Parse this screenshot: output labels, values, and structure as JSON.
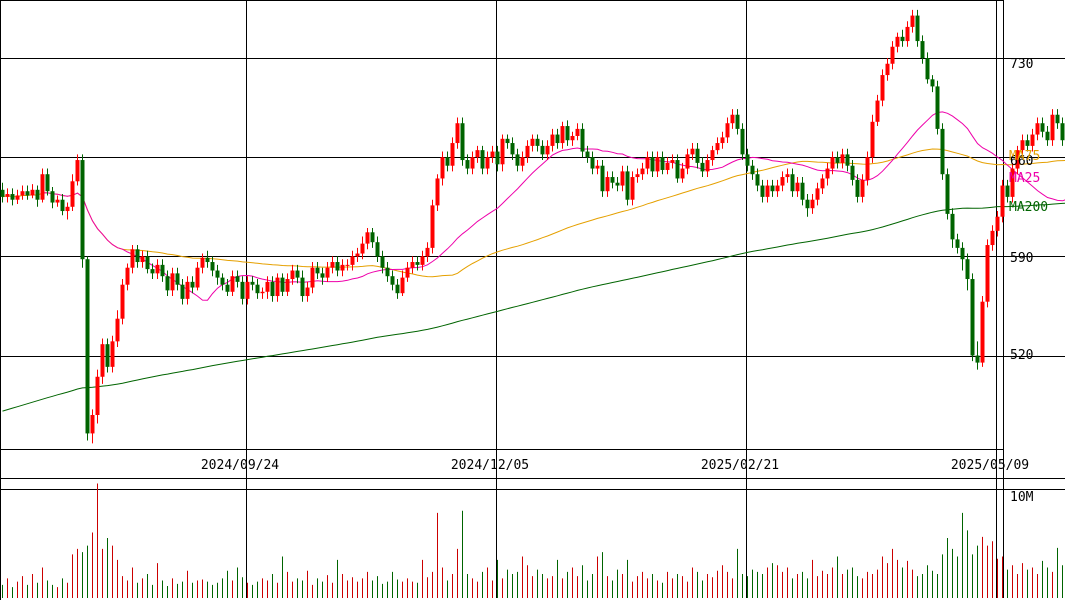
{
  "chart_data": {
    "type": "candlestick",
    "colors": {
      "up": "#ff0000",
      "down": "#006400",
      "ma25": "#ee00aa",
      "ma75": "#e5a000",
      "ma200": "#006400",
      "grid": "#000000",
      "volume_up": "#cc0000",
      "volume_down": "#006400"
    },
    "y_ticks": [
      "730",
      "660",
      "590",
      "520"
    ],
    "y_tick_values": [
      730,
      660,
      590,
      520
    ],
    "ylim": [
      454,
      771
    ],
    "date_labels": [
      "2024/09/24",
      "2024/12/05",
      "2025/02/21",
      "2025/05/09"
    ],
    "date_label_indices": [
      50,
      100,
      150,
      200
    ],
    "volume_tick": "10M",
    "volume_ylim": [
      0,
      11
    ],
    "legend": {
      "ma75": "MA75",
      "ma25": "MA25",
      "ma200": "MA200"
    },
    "candles": [
      [
        637,
        632,
        642,
        628
      ],
      [
        632,
        634,
        638,
        628
      ],
      [
        634,
        630,
        638,
        626
      ],
      [
        630,
        633,
        637,
        627
      ],
      [
        633,
        636,
        640,
        630
      ],
      [
        636,
        633,
        640,
        630
      ],
      [
        633,
        637,
        641,
        631
      ],
      [
        637,
        630,
        640,
        625
      ],
      [
        630,
        648,
        652,
        628
      ],
      [
        648,
        636,
        652,
        633
      ],
      [
        636,
        628,
        639,
        624
      ],
      [
        628,
        630,
        633,
        625
      ],
      [
        630,
        622,
        634,
        619
      ],
      [
        622,
        625,
        628,
        616
      ],
      [
        625,
        643,
        648,
        622
      ],
      [
        643,
        658,
        662,
        640
      ],
      [
        658,
        588,
        662,
        582
      ],
      [
        588,
        465,
        590,
        460
      ],
      [
        465,
        478,
        482,
        458
      ],
      [
        478,
        505,
        510,
        472
      ],
      [
        505,
        528,
        532,
        500
      ],
      [
        528,
        512,
        532,
        508
      ],
      [
        512,
        530,
        534,
        508
      ],
      [
        530,
        546,
        552,
        526
      ],
      [
        546,
        570,
        574,
        542
      ],
      [
        570,
        582,
        585,
        566
      ],
      [
        582,
        595,
        598,
        578
      ],
      [
        595,
        586,
        598,
        582
      ],
      [
        586,
        590,
        594,
        582
      ],
      [
        590,
        581,
        594,
        578
      ],
      [
        581,
        578,
        585,
        574
      ],
      [
        578,
        584,
        588,
        574
      ],
      [
        584,
        576,
        588,
        572
      ],
      [
        576,
        566,
        580,
        562
      ],
      [
        566,
        578,
        582,
        562
      ],
      [
        578,
        570,
        582,
        566
      ],
      [
        570,
        560,
        574,
        556
      ],
      [
        560,
        572,
        576,
        556
      ],
      [
        572,
        568,
        576,
        564
      ],
      [
        568,
        582,
        586,
        566
      ],
      [
        582,
        589,
        592,
        578
      ],
      [
        589,
        586,
        594,
        582
      ],
      [
        586,
        580,
        590,
        576
      ],
      [
        580,
        575,
        584,
        570
      ],
      [
        575,
        570,
        578,
        566
      ],
      [
        570,
        565,
        574,
        562
      ],
      [
        565,
        576,
        580,
        562
      ],
      [
        576,
        572,
        580,
        568
      ],
      [
        572,
        560,
        576,
        556
      ],
      [
        560,
        572,
        576,
        556
      ],
      [
        572,
        570,
        576,
        566
      ],
      [
        570,
        564,
        574,
        560
      ],
      [
        564,
        565,
        568,
        560
      ],
      [
        565,
        572,
        576,
        560
      ],
      [
        572,
        562,
        576,
        558
      ],
      [
        562,
        575,
        578,
        558
      ],
      [
        575,
        565,
        578,
        562
      ],
      [
        565,
        574,
        578,
        562
      ],
      [
        574,
        580,
        584,
        570
      ],
      [
        580,
        575,
        584,
        571
      ],
      [
        575,
        562,
        580,
        558
      ],
      [
        562,
        568,
        572,
        558
      ],
      [
        568,
        582,
        586,
        564
      ],
      [
        582,
        578,
        586,
        574
      ],
      [
        578,
        575,
        582,
        570
      ],
      [
        575,
        582,
        586,
        572
      ],
      [
        582,
        586,
        590,
        578
      ],
      [
        586,
        580,
        590,
        576
      ],
      [
        580,
        584,
        588,
        576
      ],
      [
        584,
        584,
        588,
        580
      ],
      [
        584,
        590,
        594,
        580
      ],
      [
        590,
        592,
        596,
        586
      ],
      [
        592,
        599,
        604,
        588
      ],
      [
        599,
        607,
        610,
        595
      ],
      [
        607,
        600,
        610,
        596
      ],
      [
        600,
        590,
        604,
        586
      ],
      [
        590,
        582,
        594,
        578
      ],
      [
        582,
        576,
        586,
        572
      ],
      [
        576,
        570,
        580,
        566
      ],
      [
        570,
        564,
        574,
        560
      ],
      [
        564,
        575,
        580,
        562
      ],
      [
        575,
        582,
        586,
        572
      ],
      [
        582,
        586,
        590,
        578
      ],
      [
        586,
        584,
        590,
        580
      ],
      [
        584,
        590,
        594,
        580
      ],
      [
        590,
        596,
        600,
        586
      ],
      [
        596,
        626,
        630,
        592
      ],
      [
        626,
        645,
        648,
        622
      ],
      [
        645,
        660,
        664,
        640
      ],
      [
        660,
        654,
        664,
        650
      ],
      [
        654,
        670,
        674,
        650
      ],
      [
        670,
        684,
        688,
        666
      ],
      [
        684,
        658,
        688,
        654
      ],
      [
        658,
        652,
        662,
        648
      ],
      [
        652,
        660,
        664,
        648
      ],
      [
        660,
        665,
        668,
        656
      ],
      [
        665,
        652,
        668,
        648
      ],
      [
        652,
        660,
        664,
        648
      ],
      [
        660,
        664,
        668,
        656
      ],
      [
        664,
        655,
        668,
        650
      ],
      [
        655,
        673,
        676,
        650
      ],
      [
        673,
        670,
        676,
        666
      ],
      [
        670,
        662,
        674,
        658
      ],
      [
        662,
        654,
        666,
        650
      ],
      [
        654,
        660,
        664,
        650
      ],
      [
        660,
        668,
        672,
        656
      ],
      [
        668,
        673,
        676,
        664
      ],
      [
        673,
        668,
        676,
        664
      ],
      [
        668,
        662,
        672,
        658
      ],
      [
        662,
        668,
        672,
        658
      ],
      [
        668,
        676,
        680,
        664
      ],
      [
        676,
        670,
        680,
        666
      ],
      [
        670,
        682,
        685,
        666
      ],
      [
        682,
        672,
        686,
        668
      ],
      [
        672,
        675,
        678,
        668
      ],
      [
        675,
        680,
        684,
        672
      ],
      [
        680,
        664,
        684,
        660
      ],
      [
        664,
        660,
        668,
        656
      ],
      [
        660,
        652,
        664,
        648
      ],
      [
        652,
        654,
        658,
        648
      ],
      [
        654,
        636,
        658,
        632
      ],
      [
        636,
        646,
        650,
        632
      ],
      [
        646,
        642,
        650,
        638
      ],
      [
        642,
        640,
        646,
        636
      ],
      [
        640,
        650,
        654,
        636
      ],
      [
        650,
        630,
        654,
        626
      ],
      [
        630,
        646,
        650,
        626
      ],
      [
        646,
        648,
        652,
        642
      ],
      [
        648,
        652,
        656,
        644
      ],
      [
        652,
        660,
        664,
        648
      ],
      [
        660,
        650,
        664,
        646
      ],
      [
        650,
        660,
        664,
        646
      ],
      [
        660,
        651,
        664,
        648
      ],
      [
        651,
        656,
        660,
        648
      ],
      [
        656,
        658,
        662,
        652
      ],
      [
        658,
        645,
        662,
        642
      ],
      [
        645,
        652,
        656,
        642
      ],
      [
        652,
        662,
        666,
        648
      ],
      [
        662,
        666,
        670,
        658
      ],
      [
        666,
        656,
        670,
        652
      ],
      [
        656,
        650,
        660,
        646
      ],
      [
        650,
        658,
        662,
        646
      ],
      [
        658,
        665,
        668,
        654
      ],
      [
        665,
        670,
        674,
        662
      ],
      [
        670,
        674,
        678,
        666
      ],
      [
        674,
        684,
        688,
        670
      ],
      [
        684,
        690,
        694,
        680
      ],
      [
        690,
        680,
        694,
        676
      ],
      [
        680,
        662,
        684,
        658
      ],
      [
        662,
        654,
        666,
        650
      ],
      [
        654,
        648,
        658,
        644
      ],
      [
        648,
        640,
        652,
        636
      ],
      [
        640,
        632,
        644,
        628
      ],
      [
        632,
        640,
        644,
        628
      ],
      [
        640,
        636,
        644,
        632
      ],
      [
        636,
        640,
        644,
        632
      ],
      [
        640,
        646,
        650,
        636
      ],
      [
        646,
        648,
        652,
        642
      ],
      [
        648,
        636,
        652,
        632
      ],
      [
        636,
        642,
        646,
        632
      ],
      [
        642,
        630,
        646,
        626
      ],
      [
        630,
        624,
        634,
        618
      ],
      [
        624,
        630,
        634,
        620
      ],
      [
        630,
        638,
        642,
        626
      ],
      [
        638,
        645,
        648,
        634
      ],
      [
        645,
        652,
        656,
        640
      ],
      [
        652,
        660,
        664,
        648
      ],
      [
        660,
        656,
        664,
        652
      ],
      [
        656,
        662,
        666,
        652
      ],
      [
        662,
        654,
        666,
        650
      ],
      [
        654,
        644,
        658,
        640
      ],
      [
        644,
        632,
        648,
        628
      ],
      [
        632,
        644,
        648,
        628
      ],
      [
        644,
        660,
        664,
        640
      ],
      [
        660,
        685,
        690,
        656
      ],
      [
        685,
        700,
        704,
        682
      ],
      [
        700,
        718,
        722,
        696
      ],
      [
        718,
        726,
        730,
        714
      ],
      [
        726,
        738,
        742,
        722
      ],
      [
        738,
        745,
        748,
        734
      ],
      [
        745,
        742,
        750,
        738
      ],
      [
        742,
        752,
        756,
        738
      ],
      [
        752,
        760,
        764,
        748
      ],
      [
        760,
        742,
        764,
        738
      ],
      [
        742,
        730,
        746,
        726
      ],
      [
        730,
        715,
        734,
        712
      ],
      [
        715,
        710,
        718,
        706
      ],
      [
        710,
        680,
        714,
        676
      ],
      [
        680,
        648,
        684,
        644
      ],
      [
        648,
        620,
        652,
        616
      ],
      [
        620,
        602,
        624,
        596
      ],
      [
        602,
        596,
        606,
        592
      ],
      [
        596,
        588,
        600,
        580
      ],
      [
        588,
        574,
        592,
        566
      ],
      [
        574,
        520,
        578,
        516
      ],
      [
        520,
        515,
        530,
        510
      ],
      [
        515,
        558,
        562,
        512
      ],
      [
        558,
        598,
        602,
        554
      ],
      [
        598,
        608,
        612,
        594
      ],
      [
        608,
        618,
        622,
        604
      ],
      [
        618,
        640,
        644,
        614
      ],
      [
        640,
        632,
        644,
        628
      ],
      [
        632,
        652,
        656,
        628
      ],
      [
        652,
        665,
        668,
        648
      ],
      [
        665,
        672,
        676,
        662
      ],
      [
        672,
        668,
        676,
        664
      ],
      [
        668,
        676,
        680,
        664
      ],
      [
        676,
        684,
        688,
        672
      ],
      [
        684,
        678,
        688,
        674
      ],
      [
        678,
        672,
        682,
        668
      ],
      [
        672,
        690,
        694,
        668
      ],
      [
        690,
        684,
        694,
        680
      ],
      [
        684,
        672,
        688,
        668
      ],
      [
        672,
        678,
        682,
        668
      ],
      [
        678,
        668,
        682,
        660
      ],
      [
        668,
        688,
        692,
        664
      ],
      [
        688,
        676,
        692,
        672
      ]
    ],
    "volumes": [
      1.2,
      1.8,
      1.0,
      1.5,
      2.0,
      1.2,
      2.2,
      1.4,
      2.8,
      1.6,
      1.2,
      1.0,
      1.8,
      1.4,
      4.0,
      4.5,
      4.2,
      4.8,
      6.0,
      10.5,
      4.5,
      5.5,
      4.8,
      3.5,
      2.0,
      1.6,
      2.8,
      1.4,
      1.8,
      2.2,
      1.2,
      3.2,
      1.6,
      1.1,
      1.8,
      1.3,
      1.5,
      2.5,
      1.4,
      1.6,
      1.7,
      1.5,
      1.2,
      1.4,
      1.8,
      2.5,
      1.6,
      2.8,
      1.9,
      1.4,
      1.2,
      1.5,
      1.8,
      1.6,
      2.2,
      1.4,
      3.8,
      2.4,
      1.5,
      1.8,
      1.6,
      2.5,
      1.2,
      1.8,
      1.5,
      2.1,
      1.4,
      3.5,
      2.2,
      1.6,
      1.9,
      1.5,
      1.8,
      2.4,
      1.6,
      2.0,
      1.3,
      1.5,
      2.4,
      1.7,
      1.5,
      1.8,
      1.5,
      1.4,
      3.5,
      1.9,
      2.4,
      7.8,
      2.8,
      1.6,
      2.2,
      4.5,
      8.0,
      2.2,
      1.8,
      1.5,
      2.4,
      2.8,
      1.6,
      3.5,
      1.8,
      2.6,
      2.2,
      2.4,
      3.8,
      3.0,
      2.0,
      2.6,
      2.2,
      1.8,
      2.0,
      3.5,
      1.8,
      2.4,
      2.8,
      2.0,
      3.0,
      1.6,
      2.2,
      3.8,
      4.2,
      2.0,
      1.6,
      2.6,
      2.2,
      3.5,
      1.5,
      2.0,
      2.4,
      1.8,
      2.2,
      1.6,
      1.4,
      2.4,
      1.8,
      2.2,
      2.0,
      1.5,
      2.8,
      2.4,
      1.6,
      2.2,
      1.9,
      2.5,
      3.0,
      2.4,
      1.8,
      4.5,
      2.2,
      2.0,
      2.6,
      2.4,
      2.2,
      2.8,
      3.2,
      3.0,
      2.4,
      2.8,
      1.8,
      2.2,
      2.4,
      1.8,
      3.5,
      2.0,
      2.5,
      2.2,
      2.8,
      3.8,
      2.2,
      2.6,
      2.8,
      2.0,
      1.8,
      2.4,
      2.2,
      2.6,
      3.8,
      3.2,
      4.5,
      3.5,
      2.8,
      3.4,
      2.6,
      2.0,
      2.2,
      3.0,
      2.5,
      2.2,
      4.0,
      5.5,
      4.5,
      3.8,
      7.8,
      6.2,
      4.0,
      4.8,
      5.6,
      4.8,
      5.2,
      3.6,
      3.8,
      2.6,
      3.0,
      2.2,
      3.2,
      2.6,
      2.8,
      2.2,
      3.4,
      2.8,
      2.4,
      4.6,
      3.0,
      2.6,
      3.4,
      4.8,
      3.0
    ]
  }
}
